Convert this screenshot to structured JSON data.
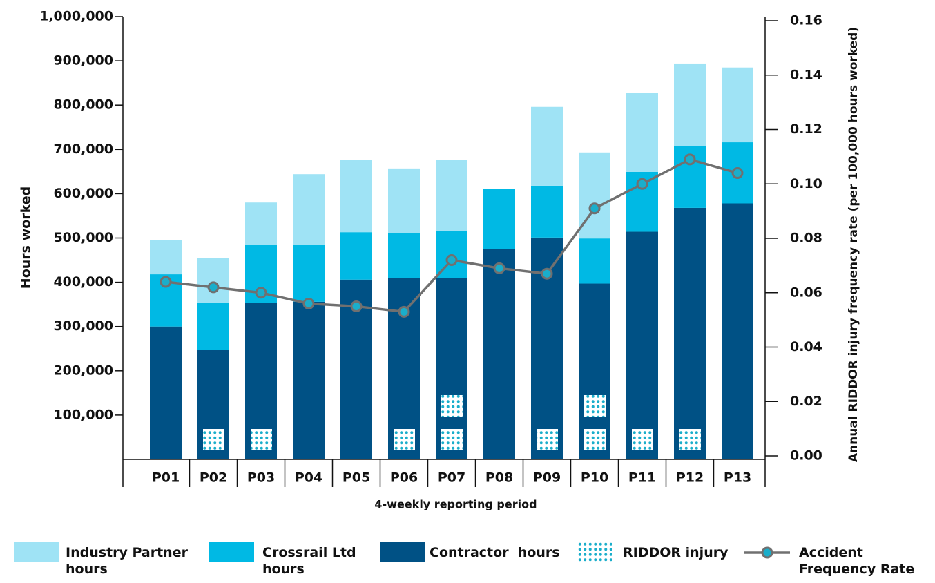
{
  "chart_data": {
    "type": "bar",
    "stacked": true,
    "x_label": "4-weekly reporting period",
    "y_label": "Hours worked",
    "y2_label": "Annual RIDDOR injury frequency rate (per 100,000 hours worked)",
    "categories": [
      "P01",
      "P02",
      "P03",
      "P04",
      "P05",
      "P06",
      "P07",
      "P08",
      "P09",
      "P10",
      "P11",
      "P12",
      "P13"
    ],
    "series": [
      {
        "name": "Contractor  hours",
        "type": "bar",
        "color": "#005185",
        "values": [
          300000,
          247000,
          353000,
          356000,
          406000,
          410000,
          410000,
          475000,
          501000,
          397000,
          514000,
          568000,
          578000
        ]
      },
      {
        "name": "Crossrail Ltd hours",
        "type": "bar",
        "color": "#00b9e4",
        "values": [
          118000,
          107000,
          132000,
          129000,
          107000,
          102000,
          105000,
          135000,
          117000,
          102000,
          135000,
          140000,
          138000
        ]
      },
      {
        "name": "Industry Partner hours",
        "type": "bar",
        "color": "#9fe3f5",
        "values": [
          78000,
          100000,
          95000,
          159000,
          164000,
          145000,
          162000,
          0,
          178000,
          194000,
          179000,
          186000,
          169000
        ]
      },
      {
        "name": "RIDDOR injury",
        "type": "pictogram",
        "color": "#1aaecb",
        "values": [
          0,
          1,
          1,
          0,
          0,
          1,
          2,
          0,
          1,
          2,
          1,
          1,
          0
        ]
      },
      {
        "name": "Accident Frequency Rate",
        "type": "line",
        "axis": "y2",
        "color": "#707070",
        "marker_color": "#1aaecb",
        "values": [
          0.064,
          0.062,
          0.06,
          0.056,
          0.055,
          0.053,
          0.072,
          0.069,
          0.067,
          0.091,
          0.1,
          0.109,
          0.104
        ]
      }
    ],
    "ylim": [
      0,
      1000000
    ],
    "yticks": [
      {
        "value": 100000,
        "label": "100,000"
      },
      {
        "value": 200000,
        "label": "200,000"
      },
      {
        "value": 300000,
        "label": "300,000"
      },
      {
        "value": 400000,
        "label": "400,000"
      },
      {
        "value": 500000,
        "label": "500,000"
      },
      {
        "value": 600000,
        "label": "600,000"
      },
      {
        "value": 700000,
        "label": "700,000"
      },
      {
        "value": 800000,
        "label": "800,000"
      },
      {
        "value": 900000,
        "label": "900,000"
      },
      {
        "value": 1000000,
        "label": "1,000,000"
      }
    ],
    "y2lim": [
      0,
      0.16
    ],
    "y2ticks": [
      {
        "value": 0,
        "label": "0.00"
      },
      0.02,
      0.04,
      0.06,
      0.08,
      {
        "value": 0.1,
        "label": "0.10"
      },
      0.12,
      0.14,
      0.16
    ]
  }
}
